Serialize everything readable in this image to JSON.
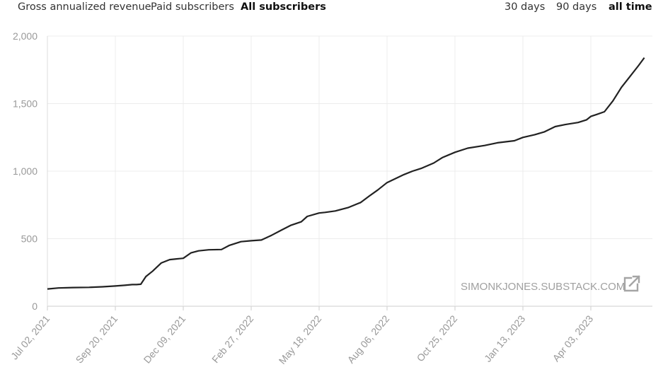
{
  "metric_tabs": [
    {
      "label": "Gross annualized revenue",
      "active": false
    },
    {
      "label": "Paid subscribers",
      "active": false
    },
    {
      "label": "All subscribers",
      "active": true
    }
  ],
  "range_tabs": [
    {
      "label": "30 days",
      "active": false
    },
    {
      "label": "90 days",
      "active": false
    },
    {
      "label": "all time",
      "active": true
    }
  ],
  "watermark": {
    "text": "SIMONKJONES.SUBSTACK.COM",
    "icon": "external-link-icon"
  },
  "chart_data": {
    "type": "line",
    "title": "",
    "xlabel": "",
    "ylabel": "",
    "ylim": [
      0,
      2000
    ],
    "yticks": [
      0,
      500,
      1000,
      1500,
      2000
    ],
    "ytick_labels": [
      "0",
      "500",
      "1,000",
      "1,500",
      "2,000"
    ],
    "grid": true,
    "line_color": "#222222",
    "xtick_labels": [
      "Jul 02, 2021",
      "Sep 20, 2021",
      "Dec 09, 2021",
      "Feb 27, 2022",
      "May 18, 2022",
      "Aug 06, 2022",
      "Oct 25, 2022",
      "Jan 13, 2023",
      "Apr 03, 2023"
    ],
    "series": [
      {
        "x": [
          "2021-07-02",
          "2021-07-15",
          "2021-08-01",
          "2021-08-20",
          "2021-09-05",
          "2021-09-20",
          "2021-10-01",
          "2021-10-10",
          "2021-10-15",
          "2021-10-20",
          "2021-10-26",
          "2021-11-03",
          "2021-11-13",
          "2021-11-23",
          "2021-12-01",
          "2021-12-09",
          "2021-12-18",
          "2021-12-27",
          "2022-01-08",
          "2022-01-23",
          "2022-02-01",
          "2022-02-15",
          "2022-02-27",
          "2022-03-11",
          "2022-03-23",
          "2022-04-04",
          "2022-04-15",
          "2022-04-27",
          "2022-05-04",
          "2022-05-18",
          "2022-05-25",
          "2022-06-06",
          "2022-06-21",
          "2022-07-06",
          "2022-07-16",
          "2022-07-26",
          "2022-08-06",
          "2022-08-16",
          "2022-08-26",
          "2022-09-05",
          "2022-09-15",
          "2022-09-30",
          "2022-10-10",
          "2022-10-25",
          "2022-11-09",
          "2022-11-29",
          "2022-12-14",
          "2023-01-03",
          "2023-01-13",
          "2023-01-27",
          "2023-02-07",
          "2023-02-20",
          "2023-03-04",
          "2023-03-19",
          "2023-03-29",
          "2023-04-03",
          "2023-04-10",
          "2023-04-19",
          "2023-04-29",
          "2023-05-09",
          "2023-05-19",
          "2023-05-29",
          "2023-06-05"
        ],
        "values": [
          128,
          135,
          138,
          140,
          144,
          150,
          155,
          160,
          160,
          163,
          220,
          260,
          320,
          345,
          350,
          355,
          395,
          410,
          418,
          420,
          450,
          478,
          485,
          490,
          525,
          565,
          600,
          625,
          665,
          690,
          695,
          705,
          730,
          768,
          815,
          860,
          915,
          945,
          975,
          1000,
          1020,
          1060,
          1100,
          1140,
          1170,
          1190,
          1210,
          1225,
          1250,
          1270,
          1290,
          1330,
          1345,
          1360,
          1380,
          1405,
          1420,
          1440,
          1520,
          1620,
          1700,
          1780,
          1840
        ]
      }
    ]
  }
}
